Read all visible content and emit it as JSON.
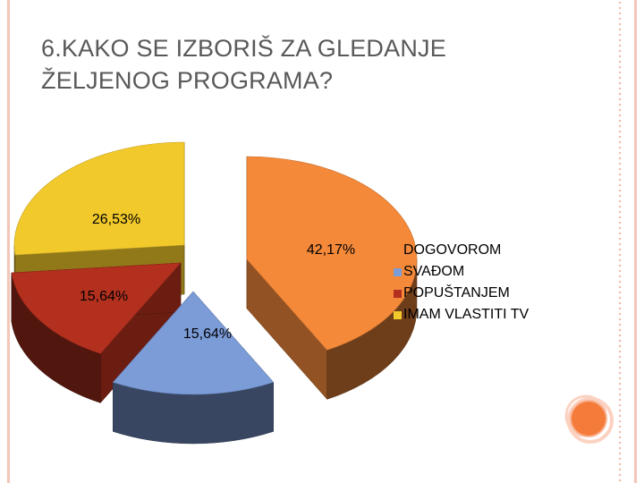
{
  "title": {
    "line1": "6.KAKO SE IZBORIŠ ZA GLEDANJE",
    "line2": "ŽELJENOG PROGRAMA?"
  },
  "chart_data": {
    "type": "pie",
    "style": "3d-exploded",
    "legend_position": "right",
    "slices": [
      {
        "label": "DOGOVOROM",
        "value": 42.17,
        "value_label": "42,17%",
        "color": "#f4893a"
      },
      {
        "label": "SVAĐOM",
        "value": 15.64,
        "value_label": "15,64%",
        "color": "#7c9cd8"
      },
      {
        "label": "POPUŠTANJEM",
        "value": 15.64,
        "value_label": "15,64%",
        "color": "#b3301e"
      },
      {
        "label": "IMAM VLASTITI TV",
        "value": 26.53,
        "value_label": "26,53%",
        "color": "#f2c92b"
      }
    ]
  }
}
